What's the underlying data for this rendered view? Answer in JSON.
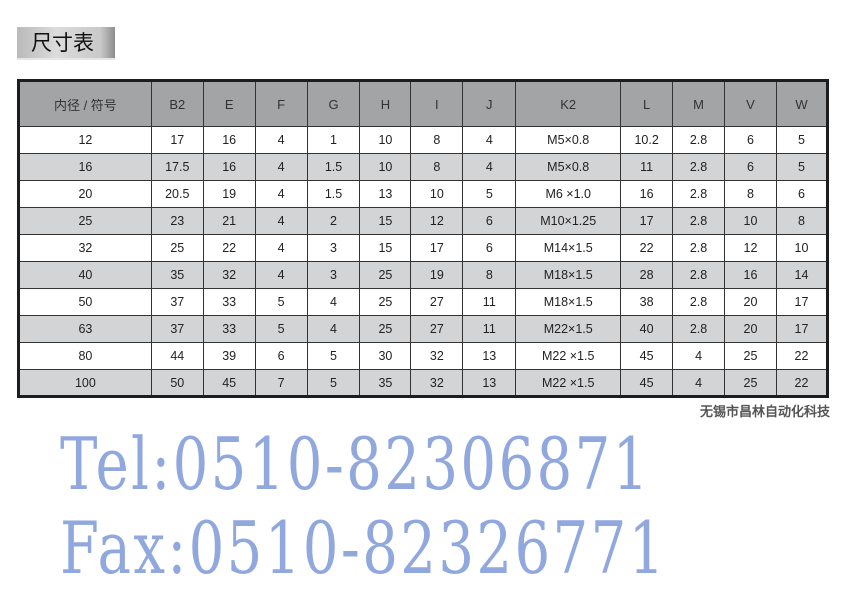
{
  "title": "尺寸表",
  "headers": [
    "内径 / 符号",
    "B2",
    "E",
    "F",
    "G",
    "H",
    "I",
    "J",
    "K2",
    "L",
    "M",
    "V",
    "W"
  ],
  "rows": [
    [
      "12",
      "17",
      "16",
      "4",
      "1",
      "10",
      "8",
      "4",
      "M5×0.8",
      "10.2",
      "2.8",
      "6",
      "5"
    ],
    [
      "16",
      "17.5",
      "16",
      "4",
      "1.5",
      "10",
      "8",
      "4",
      "M5×0.8",
      "11",
      "2.8",
      "6",
      "5"
    ],
    [
      "20",
      "20.5",
      "19",
      "4",
      "1.5",
      "13",
      "10",
      "5",
      "M6 ×1.0",
      "16",
      "2.8",
      "8",
      "6"
    ],
    [
      "25",
      "23",
      "21",
      "4",
      "2",
      "15",
      "12",
      "6",
      "M10×1.25",
      "17",
      "2.8",
      "10",
      "8"
    ],
    [
      "32",
      "25",
      "22",
      "4",
      "3",
      "15",
      "17",
      "6",
      "M14×1.5",
      "22",
      "2.8",
      "12",
      "10"
    ],
    [
      "40",
      "35",
      "32",
      "4",
      "3",
      "25",
      "19",
      "8",
      "M18×1.5",
      "28",
      "2.8",
      "16",
      "14"
    ],
    [
      "50",
      "37",
      "33",
      "5",
      "4",
      "25",
      "27",
      "11",
      "M18×1.5",
      "38",
      "2.8",
      "20",
      "17"
    ],
    [
      "63",
      "37",
      "33",
      "5",
      "4",
      "25",
      "27",
      "11",
      "M22×1.5",
      "40",
      "2.8",
      "20",
      "17"
    ],
    [
      "80",
      "44",
      "39",
      "6",
      "5",
      "30",
      "32",
      "13",
      "M22 ×1.5",
      "45",
      "4",
      "25",
      "22"
    ],
    [
      "100",
      "50",
      "45",
      "7",
      "5",
      "35",
      "32",
      "13",
      "M22 ×1.5",
      "45",
      "4",
      "25",
      "22"
    ]
  ],
  "watermark": {
    "tel": "Tel:0510-82306871",
    "fax": "Fax:0510-82326771",
    "color": "#466ec8"
  },
  "company": "无锡市昌林自动化科技"
}
